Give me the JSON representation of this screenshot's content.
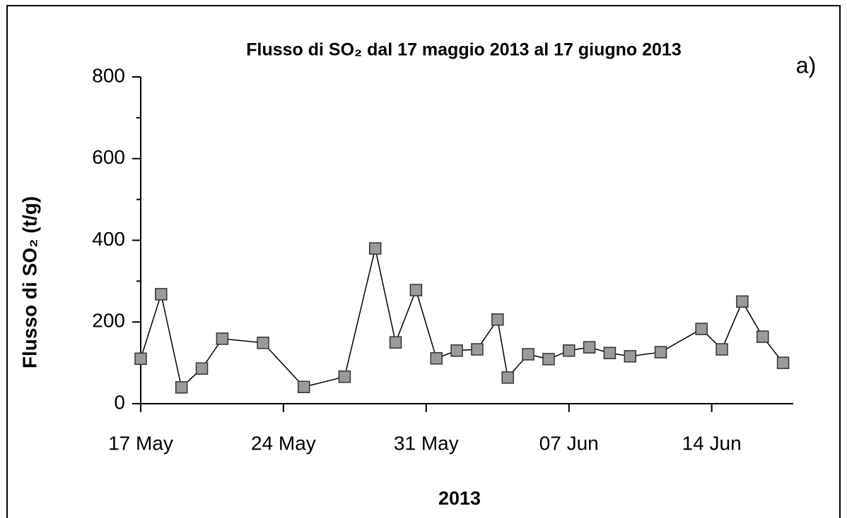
{
  "chart_data": {
    "type": "line",
    "title": "Flusso di SO₂ dal 17 maggio 2013 al 17 giugno 2013",
    "annotation": "a)",
    "x_label": "2013",
    "y_label": "Flusso di SO₂  (t/g)",
    "x": [
      "2013-05-17T00:00",
      "2013-05-18T00:00",
      "2013-05-19T00:00",
      "2013-05-20T00:00",
      "2013-05-21T00:00",
      "2013-05-23T00:00",
      "2013-05-25T00:00",
      "2013-05-27T00:00",
      "2013-05-28T12:00",
      "2013-05-29T12:00",
      "2013-05-30T12:00",
      "2013-05-31T12:00",
      "2013-06-01T12:00",
      "2013-06-02T12:00",
      "2013-06-03T12:00",
      "2013-06-04T00:00",
      "2013-06-05T00:00",
      "2013-06-06T00:00",
      "2013-06-07T00:00",
      "2013-06-08T00:00",
      "2013-06-09T00:00",
      "2013-06-10T00:00",
      "2013-06-11T12:00",
      "2013-06-13T12:00",
      "2013-06-14T12:00",
      "2013-06-15T12:00",
      "2013-06-16T12:00",
      "2013-06-17T12:00"
    ],
    "series": [
      {
        "name": "Flusso di SO₂",
        "color": "#9a9a9a",
        "line_color": "#000000",
        "values": [
          110,
          268,
          40,
          86,
          159,
          149,
          41,
          66,
          380,
          150,
          278,
          111,
          130,
          133,
          206,
          64,
          121,
          109,
          130,
          138,
          124,
          116,
          126,
          183,
          133,
          250,
          164,
          100
        ]
      }
    ],
    "xlim": [
      "2013-05-17T00:00",
      "2013-06-18T00:00"
    ],
    "xticks": [
      {
        "value": "2013-05-17T00:00",
        "label": "17 May"
      },
      {
        "value": "2013-05-24T00:00",
        "label": "24 May"
      },
      {
        "value": "2013-05-31T00:00",
        "label": "31 May"
      },
      {
        "value": "2013-06-07T00:00",
        "label": "07 Jun"
      },
      {
        "value": "2013-06-14T00:00",
        "label": "14 Jun"
      }
    ],
    "ylim": [
      0,
      800
    ],
    "yticks": [
      0,
      200,
      400,
      600,
      800
    ],
    "y_minor_ticks": [
      100,
      300,
      500,
      700
    ],
    "grid": false
  }
}
